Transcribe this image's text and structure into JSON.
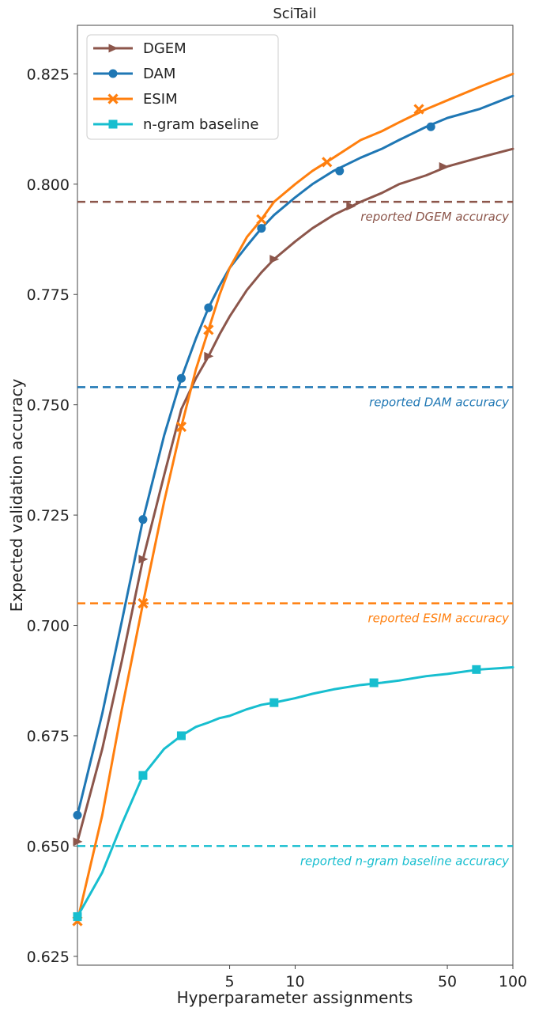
{
  "chart_data": {
    "type": "line",
    "title": "SciTail",
    "xlabel": "Hyperparameter assignments",
    "ylabel": "Expected validation accuracy",
    "xscale": "log",
    "xlim": [
      1,
      100
    ],
    "ylim": [
      0.623,
      0.836
    ],
    "xticks": [
      5,
      10,
      50,
      100
    ],
    "xtick_labels": [
      "5",
      "10",
      "50",
      "100"
    ],
    "yticks": [
      0.625,
      0.65,
      0.675,
      0.7,
      0.725,
      0.75,
      0.775,
      0.8,
      0.825
    ],
    "ytick_labels": [
      "0.625",
      "0.650",
      "0.675",
      "0.700",
      "0.725",
      "0.750",
      "0.775",
      "0.800",
      "0.825"
    ],
    "grid": false,
    "legend_position": "top-left",
    "series": [
      {
        "name": "DGEM",
        "color": "#8c564b",
        "marker": "triangle-right",
        "x": [
          1,
          1.3,
          1.6,
          2,
          2.5,
          3,
          3.5,
          4,
          4.5,
          5,
          6,
          7,
          8,
          10,
          12,
          15,
          20,
          25,
          30,
          40,
          50,
          70,
          100
        ],
        "y": [
          0.651,
          0.672,
          0.692,
          0.715,
          0.734,
          0.749,
          0.756,
          0.761,
          0.766,
          0.77,
          0.776,
          0.78,
          0.783,
          0.787,
          0.79,
          0.793,
          0.796,
          0.798,
          0.8,
          0.802,
          0.804,
          0.806,
          0.808
        ],
        "marker_x": [
          1,
          2,
          4,
          8,
          18,
          48
        ],
        "marker_y": [
          0.651,
          0.715,
          0.761,
          0.783,
          0.795,
          0.804
        ]
      },
      {
        "name": "DAM",
        "color": "#1f77b4",
        "marker": "circle",
        "x": [
          1,
          1.3,
          1.6,
          2,
          2.5,
          3,
          3.5,
          4,
          4.5,
          5,
          6,
          7,
          8,
          10,
          12,
          15,
          20,
          25,
          30,
          40,
          50,
          70,
          100
        ],
        "y": [
          0.657,
          0.68,
          0.701,
          0.724,
          0.743,
          0.756,
          0.765,
          0.772,
          0.777,
          0.781,
          0.786,
          0.79,
          0.793,
          0.797,
          0.8,
          0.803,
          0.806,
          0.808,
          0.81,
          0.813,
          0.815,
          0.817,
          0.82
        ],
        "marker_x": [
          1,
          2,
          3,
          4,
          7,
          16,
          42
        ],
        "marker_y": [
          0.657,
          0.724,
          0.756,
          0.772,
          0.79,
          0.803,
          0.813
        ]
      },
      {
        "name": "ESIM",
        "color": "#ff7f0e",
        "marker": "x",
        "x": [
          1,
          1.3,
          1.6,
          2,
          2.5,
          3,
          3.5,
          4,
          4.5,
          5,
          6,
          7,
          8,
          10,
          12,
          15,
          20,
          25,
          30,
          40,
          50,
          70,
          100
        ],
        "y": [
          0.633,
          0.657,
          0.681,
          0.705,
          0.728,
          0.745,
          0.758,
          0.767,
          0.775,
          0.781,
          0.788,
          0.792,
          0.796,
          0.8,
          0.803,
          0.806,
          0.81,
          0.812,
          0.814,
          0.817,
          0.819,
          0.822,
          0.825
        ],
        "marker_x": [
          1,
          2,
          3,
          4,
          7,
          14,
          37
        ],
        "marker_y": [
          0.633,
          0.705,
          0.745,
          0.767,
          0.792,
          0.805,
          0.817
        ]
      },
      {
        "name": "n-gram baseline",
        "color": "#17becf",
        "marker": "square",
        "x": [
          1,
          1.3,
          1.6,
          2,
          2.5,
          3,
          3.5,
          4,
          4.5,
          5,
          6,
          7,
          8,
          10,
          12,
          15,
          20,
          25,
          30,
          40,
          50,
          70,
          100
        ],
        "y": [
          0.634,
          0.644,
          0.655,
          0.666,
          0.672,
          0.675,
          0.677,
          0.678,
          0.679,
          0.6795,
          0.681,
          0.682,
          0.6825,
          0.6835,
          0.6845,
          0.6855,
          0.6865,
          0.687,
          0.6875,
          0.6885,
          0.689,
          0.69,
          0.6905
        ],
        "marker_x": [
          1,
          2,
          3,
          8,
          23,
          68
        ],
        "marker_y": [
          0.634,
          0.666,
          0.675,
          0.6825,
          0.687,
          0.69
        ]
      }
    ],
    "reference_lines": [
      {
        "label": "reported DGEM accuracy",
        "y": 0.796,
        "color": "#8c564b"
      },
      {
        "label": "reported DAM accuracy",
        "y": 0.754,
        "color": "#1f77b4"
      },
      {
        "label": "reported ESIM accuracy",
        "y": 0.705,
        "color": "#ff7f0e"
      },
      {
        "label": "reported n-gram baseline accuracy",
        "y": 0.65,
        "color": "#17becf"
      }
    ]
  }
}
